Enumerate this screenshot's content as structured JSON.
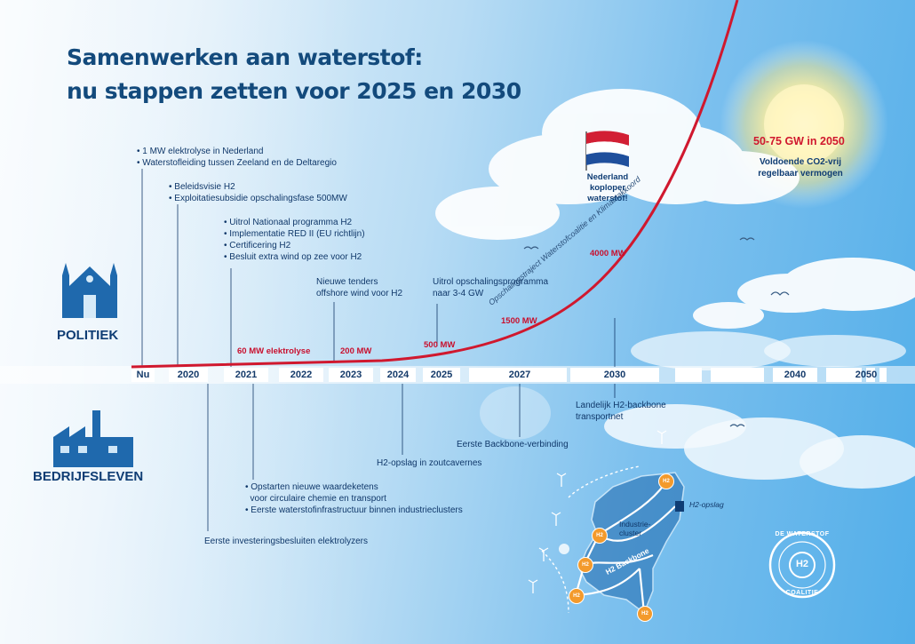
{
  "title": {
    "line1": "Samenwerken aan waterstof:",
    "line2": "nu stappen zetten voor 2025 en 2030"
  },
  "sides": {
    "top": "POLITIEK",
    "bottom": "BEDRIJFSLEVEN"
  },
  "timeline": {
    "years": [
      "Nu",
      "2020",
      "2021",
      "2022",
      "2023",
      "2024",
      "2025",
      "2027",
      "2030",
      "2040",
      "2050"
    ],
    "milestones": [
      "60 MW elektrolyse",
      "200 MW",
      "500 MW",
      "1500 MW",
      "4000 MW"
    ],
    "curve_label": "Opschalingstraject Waterstofcoalitie en Klimaatakkoord"
  },
  "politiek_events": [
    {
      "lines": [
        "• 1 MW elektrolyse in Nederland",
        "• Waterstofleiding tussen Zeeland en de Deltaregio"
      ]
    },
    {
      "lines": [
        "• Beleidsvisie H2",
        "• Exploitatiesubsidie opschalingsfase 500MW"
      ]
    },
    {
      "lines": [
        "• Uitrol Nationaal programma H2",
        "• Implementatie RED II (EU richtlijn)",
        "• Certificering H2",
        "• Besluit extra wind op zee voor H2"
      ]
    },
    {
      "lines": [
        "Nieuwe tenders",
        "offshore wind voor H2"
      ]
    },
    {
      "lines": [
        "Uitrol opschalingsprogramma",
        "naar 3-4 GW"
      ]
    }
  ],
  "bedrijfsleven_events": [
    {
      "lines": [
        "Landelijk H2-backbone",
        "transportnet"
      ]
    },
    {
      "lines": [
        "Eerste Backbone-verbinding"
      ]
    },
    {
      "lines": [
        "H2-opslag in zoutcavernes"
      ]
    },
    {
      "lines": [
        "• Opstarten nieuwe waardeketens",
        "  voor circulaire chemie en transport",
        "• Eerste waterstofinfrastructuur binnen industrieclusters"
      ]
    },
    {
      "lines": [
        "Eerste investeringsbesluiten elektrolyzers"
      ]
    }
  ],
  "flag": {
    "lines": [
      "Nederland",
      "koploper",
      "waterstof!"
    ]
  },
  "goal": {
    "headline": "50-75 GW in 2050",
    "sub": [
      "Voldoende CO2-vrij",
      "regelbaar vermogen"
    ]
  },
  "map": {
    "storage": "H2-opslag",
    "cluster": [
      "Industrie-",
      "cluster"
    ],
    "backbone": "H2 Backbone",
    "node": "H2"
  },
  "seal": {
    "top": "DE WATERSTOF",
    "bottom": "COALITIE",
    "center": "H2"
  },
  "colors": {
    "navy": "#0f3d74",
    "red": "#d0182e",
    "sky": "#52aee9"
  }
}
